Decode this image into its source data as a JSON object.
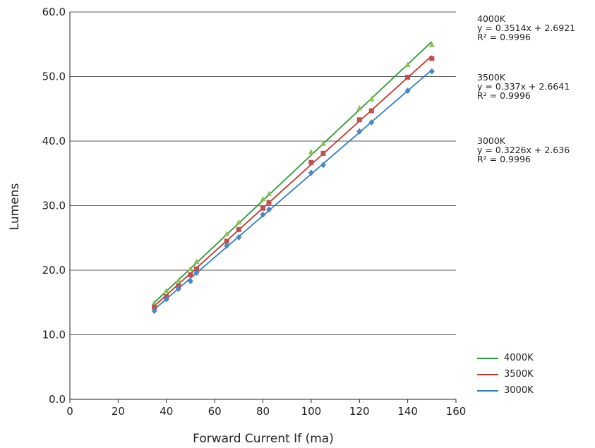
{
  "chart_data": {
    "type": "scatter",
    "title": "",
    "xlabel": "Forward Current If (ma)",
    "ylabel": "Lumens",
    "xlim": [
      0,
      160
    ],
    "ylim": [
      0,
      60
    ],
    "x_ticks": [
      "0",
      "20",
      "40",
      "60",
      "80",
      "100",
      "120",
      "140",
      "160"
    ],
    "y_ticks": [
      "0.0",
      "10.0",
      "20.0",
      "30.0",
      "40.0",
      "50.0",
      "60.0"
    ],
    "grid": "horizontal",
    "series": [
      {
        "name": "4000K",
        "color": "#2e9a3a",
        "marker": "triangle",
        "marker_color": "#8cc152",
        "x": [
          35,
          40,
          45,
          50,
          52.5,
          65,
          70,
          80,
          82.5,
          100,
          105,
          120,
          125,
          140,
          150
        ],
        "y": [
          14.9,
          16.8,
          18.4,
          20.2,
          21.3,
          25.6,
          27.4,
          31.0,
          31.8,
          38.3,
          39.6,
          45.1,
          46.5,
          51.8,
          54.9
        ],
        "trendline": {
          "slope": 0.3514,
          "intercept": 2.6921
        },
        "equation": "y = 0.3514x + 2.6921",
        "r2": "R² = 0.9996"
      },
      {
        "name": "3500K",
        "color": "#c0392b",
        "marker": "square",
        "marker_color": "#c0504d",
        "x": [
          35,
          40,
          45,
          50,
          52.5,
          65,
          70,
          80,
          82.5,
          100,
          105,
          120,
          125,
          140,
          150
        ],
        "y": [
          14.3,
          15.9,
          17.6,
          19.3,
          20.2,
          24.5,
          26.3,
          29.6,
          30.5,
          36.7,
          38.1,
          43.3,
          44.7,
          49.9,
          52.8
        ],
        "trendline": {
          "slope": 0.337,
          "intercept": 2.6641
        },
        "equation": "y = 0.337x + 2.6641",
        "r2": "R² = 0.9996"
      },
      {
        "name": "3000K",
        "color": "#2f7fc1",
        "marker": "diamond",
        "marker_color": "#4a86c8",
        "x": [
          35,
          40,
          45,
          50,
          52.5,
          65,
          70,
          80,
          82.5,
          100,
          105,
          120,
          125,
          140,
          150
        ],
        "y": [
          13.7,
          15.5,
          17.1,
          18.3,
          19.6,
          23.8,
          25.1,
          28.6,
          29.4,
          35.1,
          36.3,
          41.5,
          42.9,
          47.8,
          50.8
        ],
        "trendline": {
          "slope": 0.3226,
          "intercept": 2.636
        },
        "equation": "y = 0.3226x + 2.636",
        "r2": "R² = 0.9996"
      }
    ],
    "legend_position": "bottom-right"
  },
  "labels": {
    "eq_4000_title": "4000K",
    "eq_3500_title": "3500K",
    "eq_3000_title": "3000K"
  }
}
